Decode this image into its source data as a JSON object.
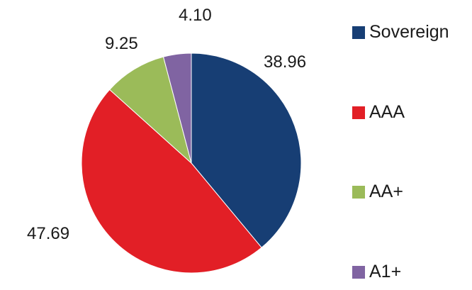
{
  "chart_data": {
    "type": "pie",
    "title": "",
    "start_angle": "top",
    "direction": "clockwise",
    "legend_position": "right",
    "slices": [
      {
        "label": "Sovereign",
        "value": 38.96,
        "display": "38.96",
        "color": "#173e74"
      },
      {
        "label": "AAA",
        "value": 47.69,
        "display": "47.69",
        "color": "#e21f26"
      },
      {
        "label": "AA+",
        "value": 9.25,
        "display": "9.25",
        "color": "#9bbb59"
      },
      {
        "label": "A1+",
        "value": 4.1,
        "display": "4.10",
        "color": "#8064a2"
      }
    ]
  }
}
